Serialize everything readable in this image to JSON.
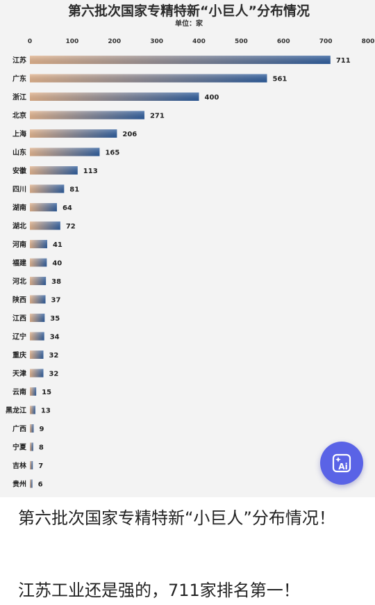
{
  "chart_data": {
    "type": "bar",
    "orientation": "horizontal",
    "title": "第六批次国家专精特新“小巨人”分布情况",
    "subtitle": "单位：家",
    "xlim": [
      0,
      800
    ],
    "xticks": [
      0,
      100,
      200,
      300,
      400,
      500,
      600,
      700,
      800
    ],
    "grid": false,
    "categories": [
      "江苏",
      "广东",
      "浙江",
      "北京",
      "上海",
      "山东",
      "安徽",
      "四川",
      "湖南",
      "湖北",
      "河南",
      "福建",
      "河北",
      "陕西",
      "江西",
      "辽宁",
      "重庆",
      "天津",
      "云南",
      "黑龙江",
      "广西",
      "宁夏",
      "吉林",
      "贵州"
    ],
    "values": [
      711,
      561,
      400,
      271,
      206,
      165,
      113,
      81,
      64,
      72,
      41,
      40,
      38,
      37,
      35,
      34,
      32,
      32,
      15,
      13,
      9,
      8,
      7,
      6
    ],
    "bar_color_start": "#e3b48e",
    "bar_color_end": "#2f5e9e"
  },
  "post": {
    "title": "第六批次国家专精特新“小巨人”分布情况！",
    "body": "江苏工业还是强的，711家排名第一！"
  },
  "ai_button": {
    "icon": "ai-sparkle-icon",
    "label": "Ai",
    "color": "#5a63e6"
  }
}
